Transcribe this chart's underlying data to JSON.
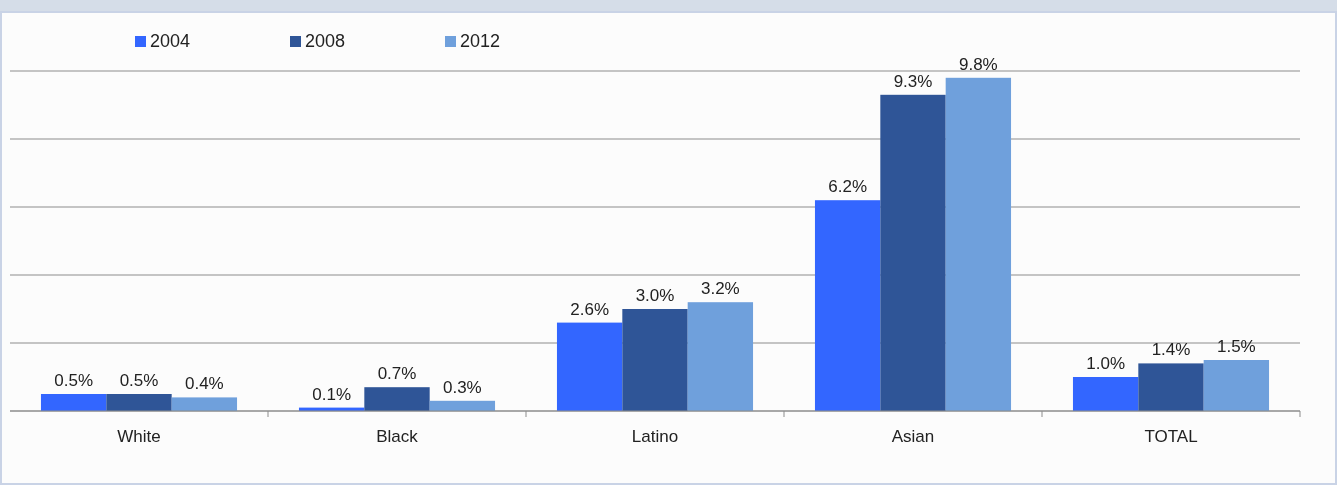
{
  "chart_data": {
    "type": "bar",
    "categories": [
      "White",
      "Black",
      "Latino",
      "Asian",
      "TOTAL"
    ],
    "series": [
      {
        "name": "2004",
        "color": "#3366ff",
        "values": [
          0.5,
          0.1,
          2.6,
          6.2,
          1.0
        ],
        "value_labels": [
          "0.5%",
          "0.1%",
          "2.6%",
          "6.2%",
          "1.0%"
        ]
      },
      {
        "name": "2008",
        "color": "#2f5597",
        "values": [
          0.5,
          0.7,
          3.0,
          9.3,
          1.4
        ],
        "value_labels": [
          "0.5%",
          "0.7%",
          "3.0%",
          "9.3%",
          "1.4%"
        ]
      },
      {
        "name": "2012",
        "color": "#6fa0dc",
        "values": [
          0.4,
          0.3,
          3.2,
          9.8,
          1.5
        ],
        "value_labels": [
          "0.4%",
          "0.3%",
          "3.2%",
          "9.8%",
          "1.5%"
        ]
      }
    ],
    "grid": "y",
    "legend": "top left",
    "tick_labels": "x"
  }
}
